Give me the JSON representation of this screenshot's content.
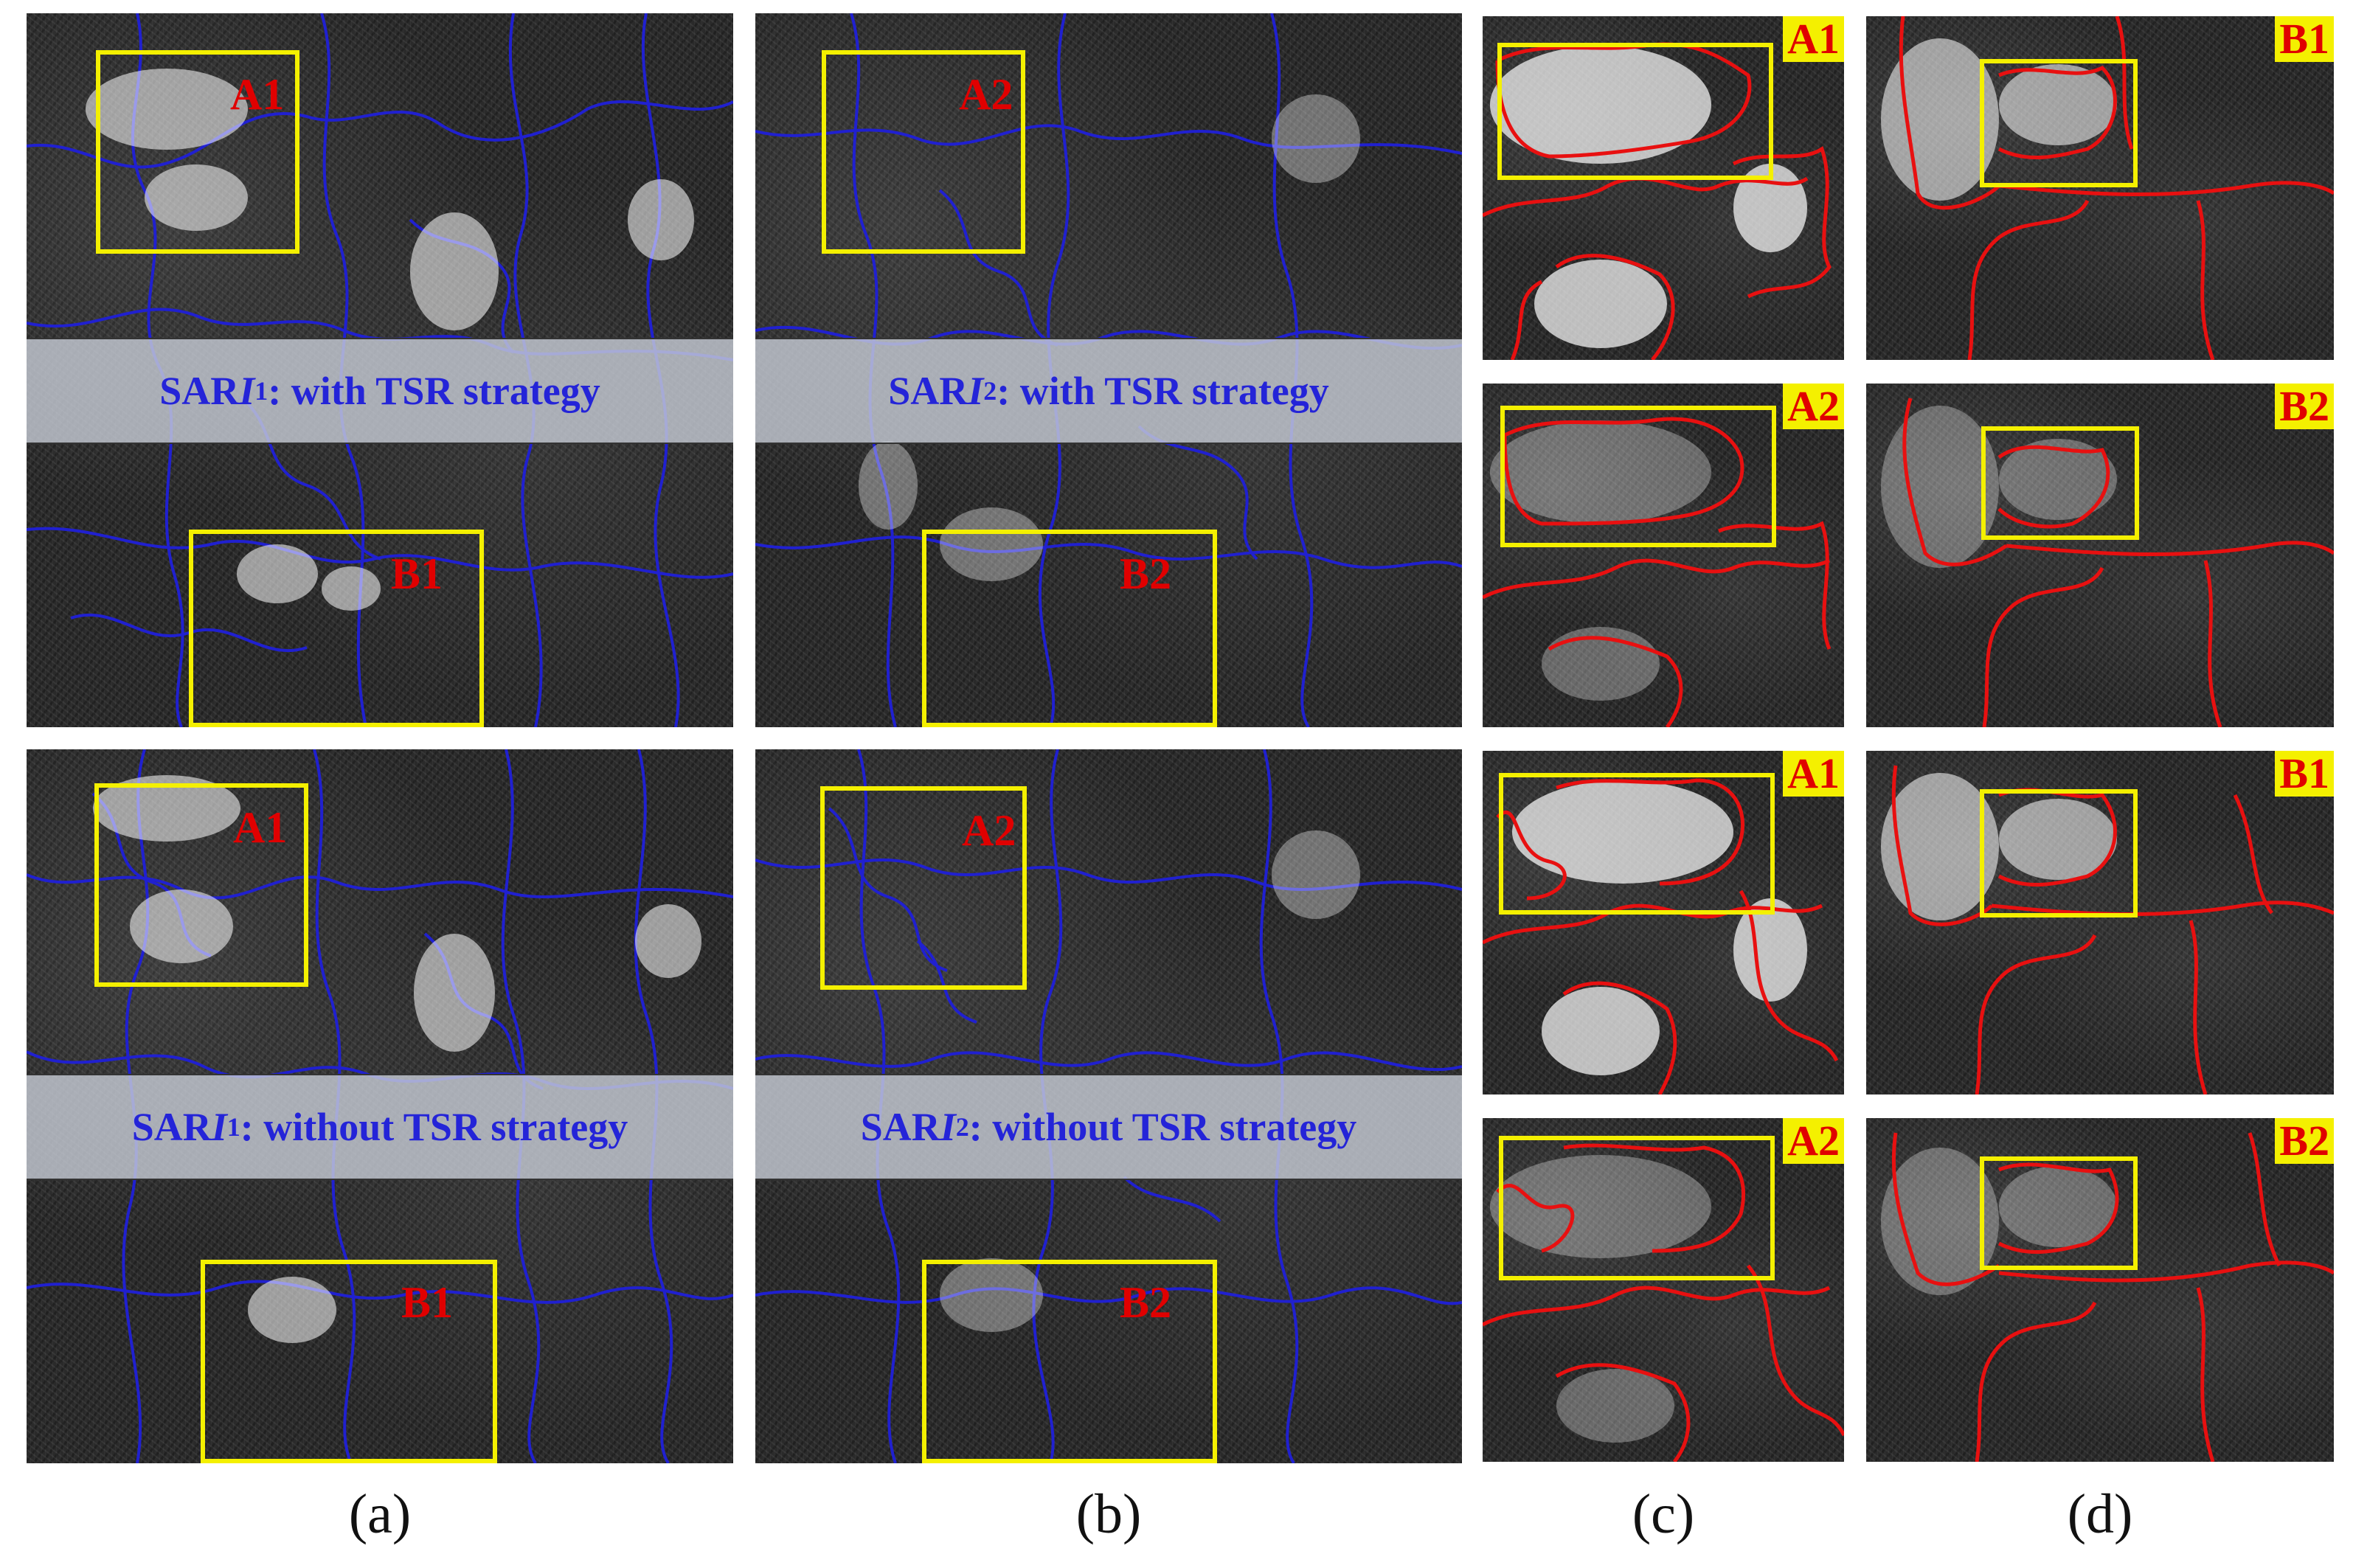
{
  "figure": {
    "column_labels": [
      "(a)",
      "(b)",
      "(c)",
      "(d)"
    ]
  },
  "large_panels": [
    {
      "caption_prefix": "SAR ",
      "caption_var": "I",
      "caption_sub": "1",
      "caption_suffix": ": with TSR strategy",
      "box_a": "A1",
      "box_b": "B1"
    },
    {
      "caption_prefix": "SAR ",
      "caption_var": "I",
      "caption_sub": "2",
      "caption_suffix": ": with TSR strategy",
      "box_a": "A2",
      "box_b": "B2"
    },
    {
      "caption_prefix": "SAR ",
      "caption_var": "I",
      "caption_sub": "1",
      "caption_suffix": ": without TSR strategy",
      "box_a": "A1",
      "box_b": "B1"
    },
    {
      "caption_prefix": "SAR ",
      "caption_var": "I",
      "caption_sub": "2",
      "caption_suffix": ": without TSR strategy",
      "box_a": "A2",
      "box_b": "B2"
    }
  ],
  "zoom_panels": {
    "c": [
      "A1",
      "A2",
      "A1",
      "A2"
    ],
    "d": [
      "B1",
      "B2",
      "B1",
      "B2"
    ]
  },
  "colors": {
    "boundary_large": "#2020d0",
    "boundary_zoom": "#e81010",
    "roi_box": "#f4f000",
    "roi_label": "#e00000",
    "caption_text": "#2424d8"
  }
}
